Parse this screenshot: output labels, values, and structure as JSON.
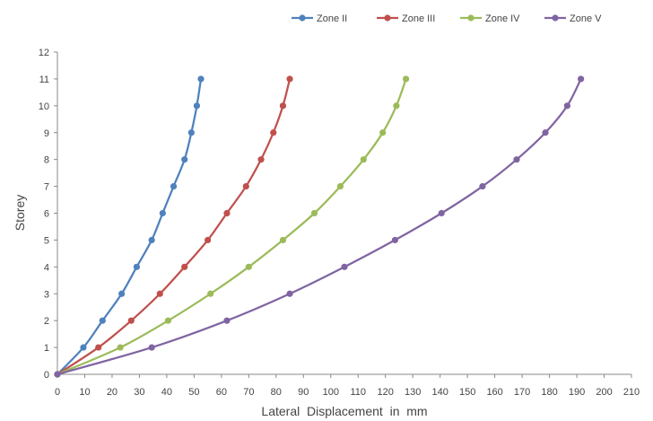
{
  "chart_data": {
    "type": "line",
    "xlabel": "Lateral  Displacement  in  mm",
    "ylabel": "Storey",
    "xlim": [
      0,
      210
    ],
    "ylim": [
      0,
      12
    ],
    "x_ticks": [
      0,
      10,
      20,
      30,
      40,
      50,
      60,
      70,
      80,
      90,
      100,
      110,
      120,
      130,
      140,
      150,
      160,
      170,
      180,
      190,
      200,
      210
    ],
    "y_ticks": [
      0,
      1,
      2,
      3,
      4,
      5,
      6,
      7,
      8,
      9,
      10,
      11,
      12
    ],
    "grid": false,
    "legend_position": "top",
    "series": [
      {
        "name": "Zone II",
        "color": "#4f81bd",
        "x": [
          0,
          9.5,
          16.5,
          23.5,
          29,
          34.5,
          38.5,
          42.5,
          46.5,
          49,
          51,
          52.5
        ],
        "y": [
          0,
          1,
          2,
          3,
          4,
          5,
          6,
          7,
          8,
          9,
          10,
          11
        ]
      },
      {
        "name": "Zone III",
        "color": "#c0504d",
        "x": [
          0,
          15,
          27,
          37.5,
          46.5,
          55,
          62,
          69,
          74.5,
          79,
          82.5,
          85
        ],
        "y": [
          0,
          1,
          2,
          3,
          4,
          5,
          6,
          7,
          8,
          9,
          10,
          11
        ]
      },
      {
        "name": "Zone IV",
        "color": "#9bbb59",
        "x": [
          0,
          23,
          40.5,
          56,
          70,
          82.5,
          94,
          103.5,
          112,
          119,
          124,
          127.5
        ],
        "y": [
          0,
          1,
          2,
          3,
          4,
          5,
          6,
          7,
          8,
          9,
          10,
          11
        ]
      },
      {
        "name": "Zone V",
        "color": "#8064a2",
        "x": [
          0,
          34.5,
          62,
          85,
          105,
          123.5,
          140.5,
          155.5,
          168,
          178.5,
          186.5,
          191.5
        ],
        "y": [
          0,
          1,
          2,
          3,
          4,
          5,
          6,
          7,
          8,
          9,
          10,
          11
        ]
      }
    ]
  }
}
